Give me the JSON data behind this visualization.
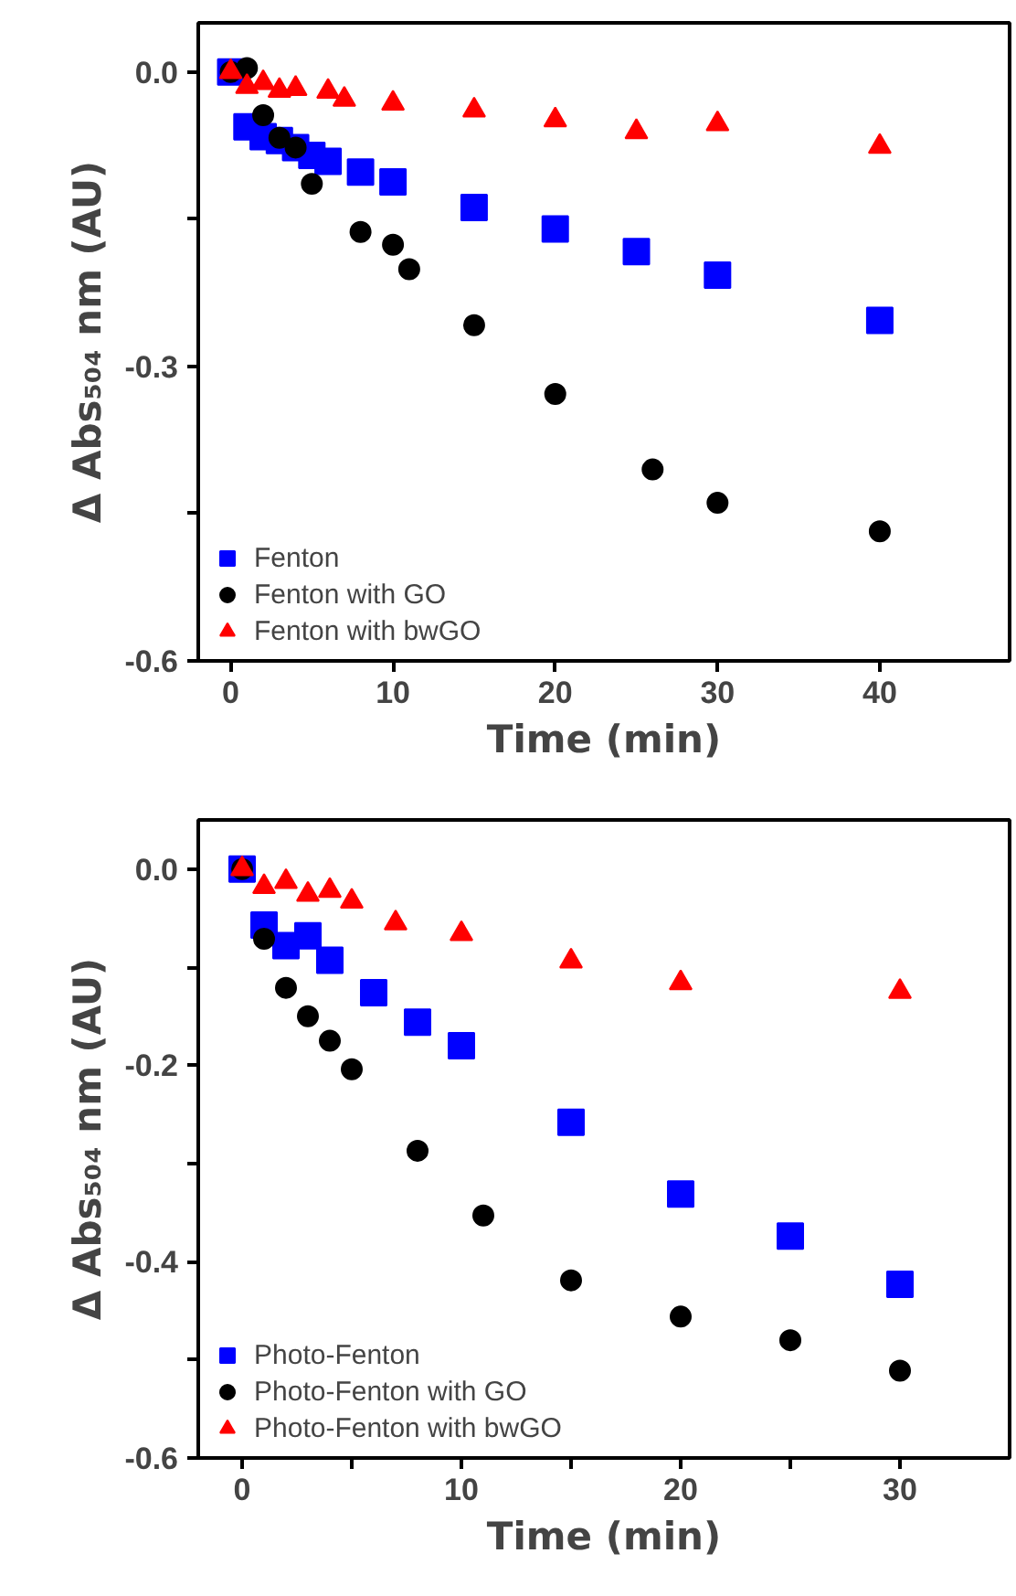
{
  "chart_data": [
    {
      "type": "scatter",
      "xlabel": "Time (min)",
      "ylabel": "Δ Abs₅₀₄ nm (AU)",
      "xlim": [
        -2,
        48
      ],
      "ylim": [
        -0.6,
        0.05
      ],
      "xticks": [
        0,
        10,
        20,
        30,
        40
      ],
      "yticks": [
        {
          "value": 0.0,
          "label": "0.0"
        },
        {
          "value": -0.15,
          "label": null
        },
        {
          "value": -0.3,
          "label": "-0.3"
        },
        {
          "value": -0.45,
          "label": null
        },
        {
          "value": -0.6,
          "label": "-0.6"
        }
      ],
      "grid": false,
      "legend": "bottom left",
      "series": [
        {
          "name": "Fenton",
          "color": "#0000ff",
          "marker": "square",
          "x": [
            0,
            1,
            2,
            3,
            4,
            5,
            6,
            8,
            10,
            15,
            20,
            25,
            30,
            40
          ],
          "values": [
            0,
            -0.056,
            -0.066,
            -0.07,
            -0.077,
            -0.085,
            -0.091,
            -0.102,
            -0.112,
            -0.138,
            -0.16,
            -0.183,
            -0.207,
            -0.253
          ]
        },
        {
          "name": "Fenton with GO",
          "color": "#000000",
          "marker": "circle",
          "x": [
            0,
            1,
            2,
            3,
            4,
            5,
            8,
            10,
            11,
            15,
            20,
            26,
            30,
            40
          ],
          "values": [
            0,
            0.004,
            -0.044,
            -0.067,
            -0.077,
            -0.114,
            -0.163,
            -0.176,
            -0.201,
            -0.258,
            -0.328,
            -0.405,
            -0.439,
            -0.468
          ]
        },
        {
          "name": "Fenton with bwGO",
          "color": "#ff0000",
          "marker": "triangle",
          "x": [
            0,
            1,
            2,
            3,
            4,
            6,
            7,
            10,
            15,
            20,
            25,
            30,
            40
          ],
          "values": [
            0,
            -0.015,
            -0.011,
            -0.019,
            -0.017,
            -0.02,
            -0.028,
            -0.032,
            -0.039,
            -0.049,
            -0.061,
            -0.053,
            -0.076
          ]
        }
      ]
    },
    {
      "type": "scatter",
      "xlabel": "Time (min)",
      "ylabel": "Δ Abs₅₀₄ nm (AU)",
      "xlim": [
        -2,
        35
      ],
      "ylim": [
        -0.6,
        0.05
      ],
      "xticks": [
        0,
        10,
        20,
        30,
        {
          "value": 5,
          "label": null
        },
        {
          "value": 15,
          "label": null
        },
        {
          "value": 25,
          "label": null
        }
      ],
      "yticks": [
        {
          "value": 0.0,
          "label": "0.0"
        },
        {
          "value": -0.1,
          "label": null
        },
        {
          "value": -0.2,
          "label": "-0.2"
        },
        {
          "value": -0.3,
          "label": null
        },
        {
          "value": -0.4,
          "label": "-0.4"
        },
        {
          "value": -0.5,
          "label": null
        },
        {
          "value": -0.6,
          "label": "-0.6"
        }
      ],
      "grid": false,
      "legend": "bottom left",
      "series": [
        {
          "name": "Photo-Fenton",
          "color": "#0000ff",
          "marker": "square",
          "x": [
            0,
            1,
            2,
            3,
            4,
            6,
            8,
            10,
            15,
            20,
            25,
            30
          ],
          "values": [
            0,
            -0.057,
            -0.078,
            -0.068,
            -0.093,
            -0.126,
            -0.156,
            -0.18,
            -0.258,
            -0.331,
            -0.374,
            -0.423
          ]
        },
        {
          "name": "Photo-Fenton with GO",
          "color": "#000000",
          "marker": "circle",
          "x": [
            0,
            1,
            2,
            3,
            4,
            5,
            8,
            11,
            15,
            20,
            25,
            30
          ],
          "values": [
            0,
            -0.071,
            -0.121,
            -0.15,
            -0.175,
            -0.204,
            -0.287,
            -0.353,
            -0.419,
            -0.456,
            -0.48,
            -0.511
          ]
        },
        {
          "name": "Photo-Fenton with bwGO",
          "color": "#ff0000",
          "marker": "triangle",
          "x": [
            0,
            1,
            2,
            3,
            4,
            5,
            7,
            10,
            15,
            20,
            30
          ],
          "values": [
            0,
            -0.018,
            -0.013,
            -0.026,
            -0.022,
            -0.033,
            -0.055,
            -0.066,
            -0.094,
            -0.116,
            -0.125
          ]
        }
      ]
    }
  ]
}
